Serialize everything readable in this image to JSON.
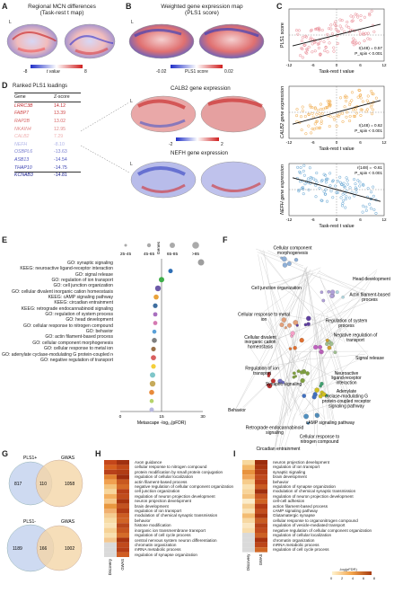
{
  "panels": {
    "A": {
      "label": "A",
      "title": "Regional MCN differences\n(Task-rest t map)",
      "side": "L",
      "cbar_min": "-8",
      "cbar_max": "8",
      "cbar_label": "t value"
    },
    "B": {
      "label": "B",
      "title": "Weighted gene expression map\n(PLS1 score)",
      "side": "L",
      "cbar_min": "-0.02",
      "cbar_max": "0.02",
      "cbar_label": "PLS1 score"
    },
    "D": {
      "label": "D",
      "side": "L",
      "table_title": "Ranked PLS1 loadings",
      "col_gene": "Gene",
      "col_z": "Z-score",
      "rows": [
        {
          "gene": "LRRC3B",
          "z": "14.12"
        },
        {
          "gene": "FABP7",
          "z": "13.39"
        },
        {
          "gene": "RAP2B",
          "z": "13.02"
        },
        {
          "gene": "NKAIN4",
          "z": "12.95"
        },
        {
          "gene": "CALB2",
          "z": "7.29"
        },
        {
          "gene": "NEFH",
          "z": "-8.10"
        },
        {
          "gene": "OSBPL6",
          "z": "-13.63"
        },
        {
          "gene": "ASB13",
          "z": "-14.54"
        },
        {
          "gene": "THAP10",
          "z": "-14.75"
        },
        {
          "gene": "KCNAB3",
          "z": "-14.81"
        }
      ],
      "calb2_title": "CALB2 gene expression",
      "nefh_title": "NEFH gene expression",
      "cbar_min": "-2",
      "cbar_max": "2"
    },
    "E": {
      "label": "E",
      "legend_title": "Genes",
      "legend_bins": [
        "25-45",
        "45-65",
        "65-85",
        ">85"
      ],
      "xlabel": "Metascape -log₁₀(pFDR)",
      "xticks": [
        "0",
        "15",
        "30"
      ],
      "terms": [
        "GO: synaptic signaling",
        "KEEG: neuroactive ligand-receptor interaction",
        "GO: signal release",
        "GO: regulation of ion transport",
        "GO: cell junction organization",
        "GO: cellular divalent inorganic cation homeostasis",
        "KEEG: cAMP signaling pathway",
        "KEEG: circadian entrainment",
        "KEEG: retrograde endocannabinoid signaling",
        "GO: regulation of system process",
        "GO: head development",
        "GO: cellular response to nitrogen compound",
        "GO: behavior",
        "GO: actin filament-based process",
        "GO: cellular component morphogenesis",
        "GO: cellular response to metal ion",
        "GO: adenylate cyclase-modulating G protein-coupled receptor signaling",
        "GO: negative regulation of transport"
      ]
    },
    "F": {
      "label": "F",
      "nodes": [
        "Cellular component morphogenesis",
        "Head development",
        "Cell junction organization",
        "Actin filament-based process",
        "Cellular response to metal ion",
        "Regulation of system process",
        "Cellular divalent inorganic cation homeostasis",
        "Negative regulation of transport",
        "Regulation of ion transport",
        "Signal release",
        "Synaptic signaling",
        "Neuroactive ligand-receptor interaction",
        "Behavior",
        "Adenylate cyclase-modulating G protein-coupled receptor signaling pathway",
        "cAMP signaling pathway",
        "Retrograde endocannabinoid signaling",
        "Circadian entrainment",
        "Cellular response to nitrogen compound"
      ]
    },
    "G": {
      "label": "G",
      "v1": {
        "a": "PLS1+",
        "b": "GWAS",
        "left": "817",
        "mid": "110",
        "right": "1058"
      },
      "v2": {
        "a": "PLS1-",
        "b": "GWAS",
        "left": "1189",
        "mid": "166",
        "right": "1002"
      }
    },
    "H": {
      "label": "H",
      "cols": [
        "Discovery",
        "GWAS"
      ],
      "terms": [
        "Axon guidance",
        "cellular response to nitrogen compound",
        "protein modification by small protein conjugation",
        "regulation of cellular localization",
        "actin filament-based process",
        "negative regulation of cellular component organization",
        "cell junction organization",
        "regulation of neuron projection development",
        "neuron projection development",
        "brain development",
        "regulation of ion transport",
        "modulation of chemical synaptic transmission",
        "behavior",
        "histone modification",
        "inorganic ion transmembrane transport",
        "regulation of cell cycle process",
        "central nervous system neuron differentiation",
        "chromatin organization",
        "mRNA metabolic process",
        "regulation of synapse organization"
      ]
    },
    "I": {
      "label": "I",
      "cols": [
        "Discovery",
        "GWAS"
      ],
      "cbar_label": "-log(pFDR)",
      "cbar_ticks": [
        "0",
        "2",
        "4",
        "6",
        "8"
      ],
      "terms": [
        "neuron projection development",
        "regulation of ion transport",
        "synaptic signaling",
        "brain development",
        "behavior",
        "regulation of synapse organization",
        "modulation of chemical synaptic transmission",
        "regulation of neuron projection development",
        "cell-cell adhesion",
        "action filament-based process",
        "cAMP signaling pathway",
        "Glutamatergic synapse",
        "cellular response to organonitrogen compound",
        "regulation of vesicle-mediated transport",
        "negative regulation of cellular component organization",
        "regulation of cellular localization",
        "chromatin organization",
        "mRNA metabolic process",
        "regulation of cell cycle process"
      ]
    }
  },
  "chart_data": [
    {
      "type": "scatter",
      "panel": "C1",
      "xlabel": "Task-rest t value",
      "ylabel": "PLS1 score",
      "xticks": [
        "-12",
        "-6",
        "0",
        "6",
        "12"
      ],
      "xlim": [
        -12,
        12
      ],
      "stats": [
        "r(148) = 0.57",
        "P_spin < 0.001"
      ],
      "color": "#e8808c"
    },
    {
      "type": "scatter",
      "panel": "C2",
      "xlabel": "Task-rest t value",
      "ylabel": "CALB2 gene expression",
      "xticks": [
        "-12",
        "-6",
        "0",
        "6",
        "12"
      ],
      "xlim": [
        -12,
        12
      ],
      "stats": [
        "r(148) = 0.62",
        "P_spin < 0.001"
      ],
      "color": "#f0a640"
    },
    {
      "type": "scatter",
      "panel": "C3",
      "xlabel": "Task-rest t value",
      "ylabel": "NEFH gene expression",
      "xticks": [
        "-12",
        "-6",
        "0",
        "6",
        "12"
      ],
      "xlim": [
        -12,
        12
      ],
      "stats": [
        "r(148) = -0.61",
        "P_spin < 0.001"
      ],
      "color": "#5a9fd0"
    }
  ]
}
